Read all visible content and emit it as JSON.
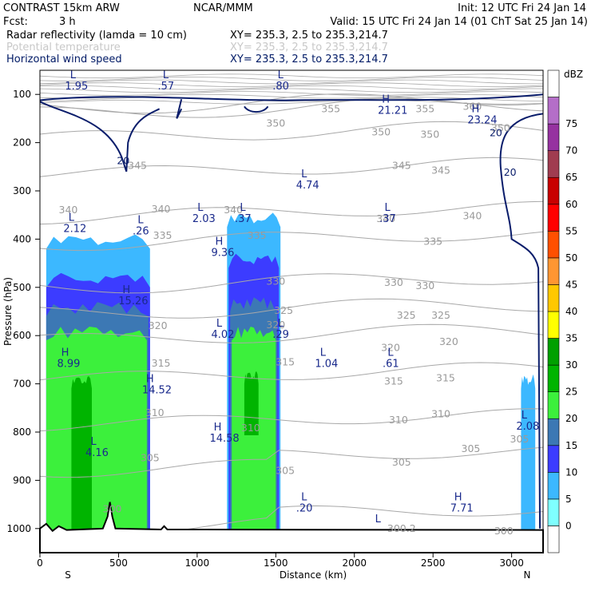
{
  "header": {
    "model": "CONTRAST 15km ARW",
    "org": "NCAR/MMM",
    "init": "Init: 12 UTC Fri 24 Jan 14",
    "fcst_label": "Fcst:",
    "fcst_value": "3 h",
    "valid": "Valid: 15 UTC Fri 24 Jan 14 (01 ChT Sat 25 Jan 14)",
    "fields": [
      {
        "name": "Radar reflectivity (lamda = 10 cm)",
        "xy": "XY= 235.3,  2.5 to 235.3,214.7"
      },
      {
        "name": "Potential temperature",
        "xy": "XY= 235.3,  2.5 to 235.3,214.7"
      },
      {
        "name": "Horizontal wind speed",
        "xy": "XY= 235.3,  2.5 to 235.3,214.7"
      }
    ]
  },
  "colors": {
    "wind_contour": "#0a1d6b",
    "theta_contour": "#a8a8a8",
    "terrain": "#000000"
  },
  "chart_data": {
    "type": "cross-section",
    "xlabel": "Distance (km)",
    "ylabel": "Pressure (hPa)",
    "xlim": [
      0,
      3200
    ],
    "ylim": [
      1050,
      50
    ],
    "x_ticks": [
      0,
      500,
      1000,
      1500,
      2000,
      2500,
      3000
    ],
    "x_tick_labels": [
      "0",
      "500",
      "1000",
      "1500",
      "2000",
      "2500",
      "3000"
    ],
    "y_ticks": [
      100,
      200,
      300,
      400,
      500,
      600,
      700,
      800,
      900,
      1000
    ],
    "y_tick_labels": [
      "100",
      "200",
      "300",
      "400",
      "500",
      "600",
      "700",
      "800",
      "900",
      "1000"
    ],
    "end_labels": {
      "left": "S",
      "right": "N"
    },
    "colorbar": {
      "unit": "dBZ",
      "levels": [
        "0",
        "5",
        "10",
        "15",
        "20",
        "25",
        "30",
        "35",
        "40",
        "45",
        "50",
        "55",
        "60",
        "65",
        "70",
        "75"
      ],
      "colors": [
        "#ffffff",
        "#7fffff",
        "#3cb8ff",
        "#3c3cff",
        "#3c78b4",
        "#3cf03c",
        "#00b400",
        "#00a000",
        "#ffff00",
        "#ffc800",
        "#ff9632",
        "#ff5000",
        "#ff0000",
        "#c80000",
        "#a03c50",
        "#9632a0",
        "#b46ec8",
        "#ffffff"
      ]
    },
    "theta_contour_labels": [
      {
        "x": 1850,
        "p": 130,
        "text": "355"
      },
      {
        "x": 2450,
        "p": 130,
        "text": "355"
      },
      {
        "x": 2750,
        "p": 125,
        "text": "360"
      },
      {
        "x": 1500,
        "p": 160,
        "text": "350"
      },
      {
        "x": 2170,
        "p": 178,
        "text": "350"
      },
      {
        "x": 2480,
        "p": 183,
        "text": "350"
      },
      {
        "x": 2930,
        "p": 170,
        "text": "350"
      },
      {
        "x": 620,
        "p": 248,
        "text": "345"
      },
      {
        "x": 2300,
        "p": 248,
        "text": "345"
      },
      {
        "x": 2550,
        "p": 258,
        "text": "345"
      },
      {
        "x": 180,
        "p": 340,
        "text": "340"
      },
      {
        "x": 770,
        "p": 338,
        "text": "340"
      },
      {
        "x": 1230,
        "p": 340,
        "text": "340"
      },
      {
        "x": 2200,
        "p": 358,
        "text": "340"
      },
      {
        "x": 2750,
        "p": 352,
        "text": "340"
      },
      {
        "x": 780,
        "p": 393,
        "text": "335"
      },
      {
        "x": 1380,
        "p": 393,
        "text": "335"
      },
      {
        "x": 2500,
        "p": 405,
        "text": "335"
      },
      {
        "x": 1500,
        "p": 488,
        "text": "330"
      },
      {
        "x": 2250,
        "p": 490,
        "text": "330"
      },
      {
        "x": 2450,
        "p": 497,
        "text": "330"
      },
      {
        "x": 1550,
        "p": 548,
        "text": "325"
      },
      {
        "x": 2330,
        "p": 558,
        "text": "325"
      },
      {
        "x": 2550,
        "p": 558,
        "text": "325"
      },
      {
        "x": 750,
        "p": 580,
        "text": "320"
      },
      {
        "x": 1500,
        "p": 578,
        "text": "320"
      },
      {
        "x": 2230,
        "p": 625,
        "text": "320"
      },
      {
        "x": 2600,
        "p": 613,
        "text": "320"
      },
      {
        "x": 770,
        "p": 658,
        "text": "315"
      },
      {
        "x": 1560,
        "p": 655,
        "text": "315"
      },
      {
        "x": 2250,
        "p": 695,
        "text": "315"
      },
      {
        "x": 2580,
        "p": 688,
        "text": "315"
      },
      {
        "x": 730,
        "p": 760,
        "text": "310"
      },
      {
        "x": 1340,
        "p": 792,
        "text": "310"
      },
      {
        "x": 2280,
        "p": 775,
        "text": "310"
      },
      {
        "x": 2550,
        "p": 763,
        "text": "310"
      },
      {
        "x": 700,
        "p": 854,
        "text": "305"
      },
      {
        "x": 1560,
        "p": 880,
        "text": "305"
      },
      {
        "x": 2300,
        "p": 863,
        "text": "305"
      },
      {
        "x": 2740,
        "p": 835,
        "text": "305"
      },
      {
        "x": 3050,
        "p": 815,
        "text": "305"
      },
      {
        "x": 460,
        "p": 960,
        "text": "300"
      },
      {
        "x": 2300,
        "p": 1000,
        "text": "300.2"
      },
      {
        "x": 2950,
        "p": 1005,
        "text": "300"
      }
    ],
    "wind_contour_labels": [
      {
        "x": 530,
        "p": 238,
        "text": "20"
      },
      {
        "x": 2900,
        "p": 180,
        "text": "20"
      },
      {
        "x": 2990,
        "p": 262,
        "text": "20"
      }
    ],
    "highs_lows": [
      {
        "type": "L",
        "x": 210,
        "p": 70,
        "value": "1.95"
      },
      {
        "type": "L",
        "x": 800,
        "p": 70,
        "value": ".57"
      },
      {
        "type": "L",
        "x": 1530,
        "p": 70,
        "value": ".80"
      },
      {
        "type": "H",
        "x": 2200,
        "p": 120,
        "value": "21.21"
      },
      {
        "type": "H",
        "x": 2770,
        "p": 140,
        "value": "23.24"
      },
      {
        "type": "L",
        "x": 1680,
        "p": 275,
        "value": "4.74"
      },
      {
        "type": "L",
        "x": 200,
        "p": 365,
        "value": "2.12"
      },
      {
        "type": "L",
        "x": 640,
        "p": 370,
        "value": ".26"
      },
      {
        "type": "L",
        "x": 1020,
        "p": 345,
        "value": "2.03"
      },
      {
        "type": "L",
        "x": 1290,
        "p": 345,
        "value": ".37"
      },
      {
        "type": "L",
        "x": 2210,
        "p": 345,
        "value": ".37"
      },
      {
        "type": "H",
        "x": 1140,
        "p": 415,
        "value": "9.36"
      },
      {
        "type": "H",
        "x": 550,
        "p": 515,
        "value": "15.26"
      },
      {
        "type": "L",
        "x": 1140,
        "p": 585,
        "value": "4.02"
      },
      {
        "type": "L",
        "x": 1530,
        "p": 585,
        "value": ".29"
      },
      {
        "type": "H",
        "x": 160,
        "p": 645,
        "value": "8.99"
      },
      {
        "type": "L",
        "x": 1800,
        "p": 645,
        "value": "1.04"
      },
      {
        "type": "L",
        "x": 2230,
        "p": 645,
        "value": ".61"
      },
      {
        "type": "H",
        "x": 700,
        "p": 700,
        "value": "14.52"
      },
      {
        "type": "H",
        "x": 1130,
        "p": 800,
        "value": "14.58"
      },
      {
        "type": "L",
        "x": 340,
        "p": 830,
        "value": "4.16"
      },
      {
        "type": "L",
        "x": 3080,
        "p": 775,
        "value": "2.08"
      },
      {
        "type": "L",
        "x": 1680,
        "p": 945,
        "value": ".20"
      },
      {
        "type": "H",
        "x": 2660,
        "p": 945,
        "value": "7.71"
      },
      {
        "type": "L",
        "x": 2150,
        "p": 990,
        "value": ""
      }
    ],
    "reflectivity_regions": [
      {
        "dbz": 5,
        "x_km": [
          40,
          700
        ],
        "p_top_hPa": 390,
        "p_bot_hPa": 1000
      },
      {
        "dbz": 5,
        "x_km": [
          1190,
          1530
        ],
        "p_top_hPa": 345,
        "p_bot_hPa": 1000
      },
      {
        "dbz": 5,
        "x_km": [
          3060,
          3150
        ],
        "p_top_hPa": 680,
        "p_bot_hPa": 1000
      },
      {
        "dbz": 10,
        "x_km": [
          40,
          700
        ],
        "p_top_hPa": 470,
        "p_bot_hPa": 1000
      },
      {
        "dbz": 10,
        "x_km": [
          1200,
          1520
        ],
        "p_top_hPa": 430,
        "p_bot_hPa": 1000
      },
      {
        "dbz": 15,
        "x_km": [
          40,
          690
        ],
        "p_top_hPa": 530,
        "p_bot_hPa": 1000
      },
      {
        "dbz": 15,
        "x_km": [
          1210,
          1510
        ],
        "p_top_hPa": 520,
        "p_bot_hPa": 1000
      },
      {
        "dbz": 20,
        "x_km": [
          40,
          680
        ],
        "p_top_hPa": 580,
        "p_bot_hPa": 1000
      },
      {
        "dbz": 20,
        "x_km": [
          1220,
          1500
        ],
        "p_top_hPa": 580,
        "p_bot_hPa": 1000
      },
      {
        "dbz": 25,
        "x_km": [
          200,
          330
        ],
        "p_top_hPa": 680,
        "p_bot_hPa": 1000
      },
      {
        "dbz": 25,
        "x_km": [
          1300,
          1390
        ],
        "p_top_hPa": 670,
        "p_bot_hPa": 790
      }
    ]
  }
}
